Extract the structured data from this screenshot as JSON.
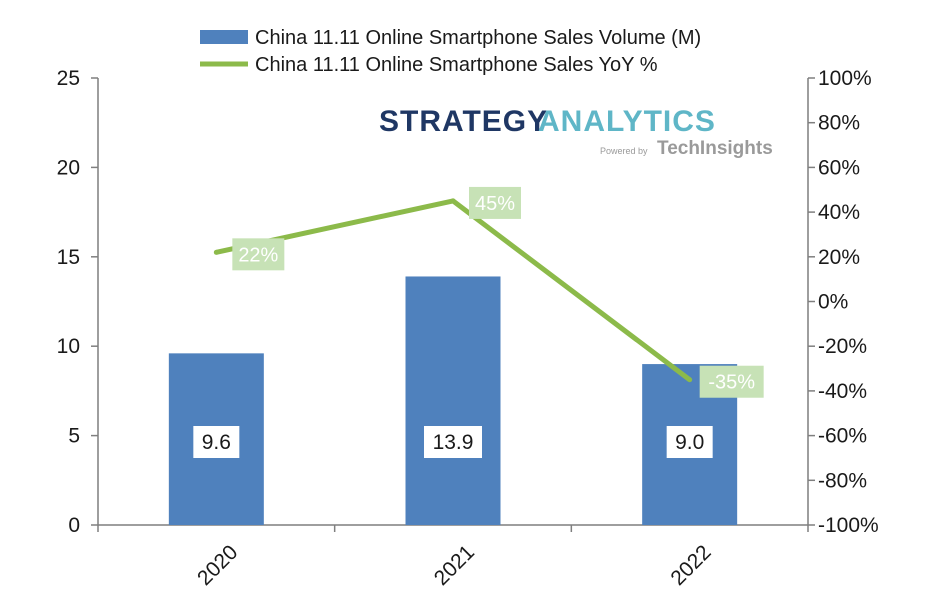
{
  "colors": {
    "bar": "#4f81bd",
    "line": "#8cba4a",
    "yoy_label_bg": "#c7e2b6",
    "yoy_label_text": "#ffffff",
    "axis": "#7f7f7f",
    "logo_dark": "#1f3764",
    "logo_teal": "#5fb6c7"
  },
  "logo": {
    "word1": "STRATEGY",
    "word2": "ANALYTICS",
    "powered": "Powered by",
    "company": "TechInsights"
  },
  "chart_data": {
    "type": "bar",
    "title": "",
    "categories": [
      "2020",
      "2021",
      "2022"
    ],
    "series": [
      {
        "name": "China 11.11 Online Smartphone Sales Volume (M)",
        "kind": "bar",
        "axis": "left",
        "values": [
          9.6,
          13.9,
          9.0
        ],
        "labels": [
          "9.6",
          "13.9",
          "9.0"
        ]
      },
      {
        "name": "China 11.11 Online Smartphone Sales YoY %",
        "kind": "line",
        "axis": "right",
        "values": [
          22,
          45,
          -35
        ],
        "labels": [
          "22%",
          "45%",
          "-35%"
        ]
      }
    ],
    "left_axis": {
      "ylim": [
        0,
        25
      ],
      "ticks": [
        "0",
        "5",
        "10",
        "15",
        "20",
        "25"
      ]
    },
    "right_axis": {
      "ylim": [
        -100,
        100
      ],
      "ticks": [
        "-100%",
        "-80%",
        "-60%",
        "-40%",
        "-20%",
        "0%",
        "20%",
        "40%",
        "60%",
        "80%",
        "100%"
      ]
    },
    "legend_position": "top",
    "grid": false
  }
}
